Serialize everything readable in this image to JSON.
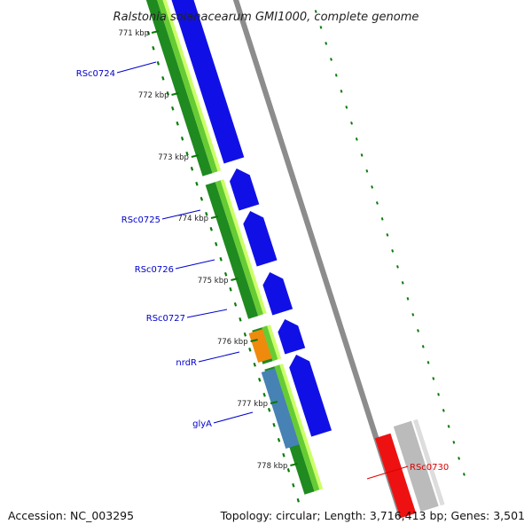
{
  "title": "Ralstonia solanacearum GMI1000, complete genome",
  "footer": {
    "accession": "Accession: NC_003295",
    "summary": "Topology: circular; Length: 3,716,413 bp; Genes: 3,501"
  },
  "ticks": [
    "771 kbp",
    "772 kbp",
    "773 kbp",
    "774 kbp",
    "775 kbp",
    "776 kbp",
    "777 kbp",
    "778 kbp"
  ],
  "gene_labels": [
    {
      "name": "RSc0724",
      "color": "#0000cc"
    },
    {
      "name": "RSc0725",
      "color": "#0000cc"
    },
    {
      "name": "RSc0726",
      "color": "#0000cc"
    },
    {
      "name": "RSc0727",
      "color": "#0000cc"
    },
    {
      "name": "nrdR",
      "color": "#0000cc"
    },
    {
      "name": "glyA",
      "color": "#0000cc"
    },
    {
      "name": "RSc0730",
      "color": "#dd0000"
    }
  ],
  "colors": {
    "cds": "#1010e6",
    "highlight": "#ee1111",
    "rna_orange": "#f08a0c",
    "rna_steelblue": "#4682b4",
    "gc_dark_green": "#1f8a1f",
    "gc_light_green": "#66cc33",
    "gc_yellow_green": "#ccff66",
    "backbone": "#8c8c8c",
    "gray_feature": "#bbbbbb",
    "tick_green": "#0a7a0a"
  }
}
